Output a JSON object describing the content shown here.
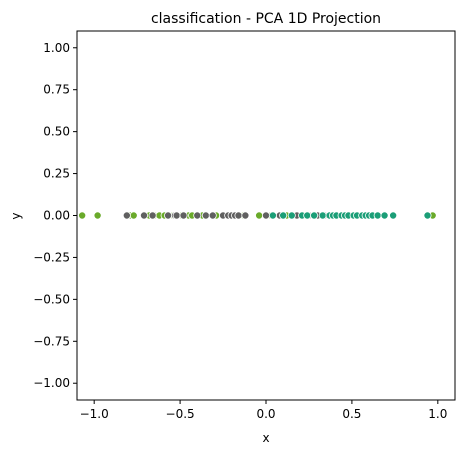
{
  "chart_data": {
    "type": "scatter",
    "title": "classification - PCA 1D Projection",
    "xlabel": "x",
    "ylabel": "y",
    "xlim": [
      -1.1,
      1.1
    ],
    "ylim": [
      -1.1,
      1.1
    ],
    "x_ticks": [
      -1.0,
      -0.5,
      0.0,
      0.5,
      1.0
    ],
    "x_tick_labels": [
      "−1.0",
      "−0.5",
      "0.0",
      "0.5",
      "1.0"
    ],
    "y_ticks": [
      1.0,
      0.75,
      0.5,
      0.25,
      0.0,
      -0.25,
      -0.5,
      -0.75,
      -1.0
    ],
    "y_tick_labels": [
      "1.00",
      "0.75",
      "0.50",
      "0.25",
      "0.00",
      "−0.25",
      "−0.50",
      "−0.75",
      "−1.00"
    ],
    "grid": false,
    "legend": false,
    "series": [
      {
        "color": "#6aaa2a",
        "x": [
          -1.07,
          -0.98,
          -0.79,
          -0.77,
          -0.68,
          -0.65,
          -0.62,
          -0.59,
          -0.54,
          -0.49,
          -0.45,
          -0.43,
          -0.37,
          -0.29,
          -0.13,
          -0.04,
          0.03,
          0.12,
          0.22,
          0.31,
          0.55,
          0.97
        ]
      },
      {
        "color": "#606060",
        "x": [
          -0.81,
          -0.71,
          -0.66,
          -0.57,
          -0.53,
          -0.52,
          -0.48,
          -0.4,
          -0.35,
          -0.31,
          -0.25,
          -0.22,
          -0.2,
          -0.18,
          -0.16,
          -0.12,
          0.0,
          0.08,
          0.16,
          0.18,
          0.25,
          0.3,
          0.34,
          0.5
        ]
      },
      {
        "color": "#1b9e77",
        "x": [
          0.04,
          0.1,
          0.15,
          0.21,
          0.24,
          0.28,
          0.33,
          0.37,
          0.39,
          0.41,
          0.44,
          0.46,
          0.48,
          0.51,
          0.53,
          0.56,
          0.58,
          0.6,
          0.62,
          0.65,
          0.69,
          0.74,
          0.94
        ]
      }
    ]
  }
}
